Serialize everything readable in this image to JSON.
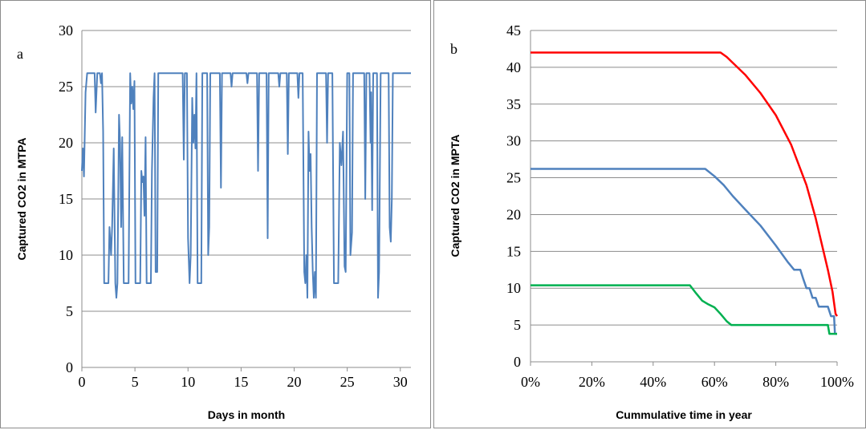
{
  "chart_data": [
    {
      "type": "line",
      "panel_letter": "a",
      "xlabel": "Days in month",
      "ylabel": "Captured CO2 in MTPA",
      "xlim": [
        0,
        31
      ],
      "ylim": [
        0,
        30
      ],
      "xticks": [
        "0",
        "5",
        "10",
        "15",
        "20",
        "25",
        "30"
      ],
      "yticks": [
        "0",
        "5",
        "10",
        "15",
        "20",
        "25",
        "30"
      ],
      "grid": "horizontal",
      "series": [
        {
          "color": "#4f81bd",
          "points": [
            [
              0.0,
              17.5
            ],
            [
              0.1,
              19.5
            ],
            [
              0.2,
              17.0
            ],
            [
              0.35,
              24.5
            ],
            [
              0.5,
              26.2
            ],
            [
              1.2,
              26.2
            ],
            [
              1.3,
              22.7
            ],
            [
              1.45,
              26.2
            ],
            [
              1.7,
              26.2
            ],
            [
              1.8,
              25.3
            ],
            [
              1.9,
              26.2
            ],
            [
              2.0,
              21.0
            ],
            [
              2.1,
              7.5
            ],
            [
              2.5,
              7.5
            ],
            [
              2.6,
              12.5
            ],
            [
              2.75,
              10.0
            ],
            [
              2.85,
              12.5
            ],
            [
              3.0,
              19.5
            ],
            [
              3.15,
              7.5
            ],
            [
              3.25,
              6.2
            ],
            [
              3.35,
              7.5
            ],
            [
              3.5,
              22.5
            ],
            [
              3.6,
              20.0
            ],
            [
              3.7,
              12.5
            ],
            [
              3.8,
              20.5
            ],
            [
              3.95,
              7.5
            ],
            [
              4.4,
              7.5
            ],
            [
              4.55,
              26.2
            ],
            [
              4.65,
              23.5
            ],
            [
              4.75,
              25.0
            ],
            [
              4.85,
              23.0
            ],
            [
              4.95,
              25.5
            ],
            [
              5.05,
              7.5
            ],
            [
              5.5,
              7.5
            ],
            [
              5.6,
              17.5
            ],
            [
              5.7,
              16.5
            ],
            [
              5.8,
              17.0
            ],
            [
              5.9,
              13.5
            ],
            [
              6.0,
              20.5
            ],
            [
              6.1,
              7.5
            ],
            [
              6.5,
              7.5
            ],
            [
              6.6,
              17.5
            ],
            [
              6.75,
              24.0
            ],
            [
              6.85,
              26.2
            ],
            [
              6.95,
              8.5
            ],
            [
              7.1,
              8.5
            ],
            [
              7.2,
              26.2
            ],
            [
              9.5,
              26.2
            ],
            [
              9.6,
              18.5
            ],
            [
              9.7,
              26.2
            ],
            [
              9.9,
              26.2
            ],
            [
              10.0,
              11.5
            ],
            [
              10.15,
              7.5
            ],
            [
              10.25,
              10.0
            ],
            [
              10.4,
              24.0
            ],
            [
              10.5,
              20.0
            ],
            [
              10.6,
              22.5
            ],
            [
              10.7,
              19.5
            ],
            [
              10.8,
              26.2
            ],
            [
              10.9,
              7.5
            ],
            [
              11.25,
              7.5
            ],
            [
              11.35,
              26.2
            ],
            [
              11.8,
              26.2
            ],
            [
              11.9,
              10.0
            ],
            [
              12.0,
              12.5
            ],
            [
              12.1,
              26.2
            ],
            [
              13.0,
              26.2
            ],
            [
              13.1,
              16.0
            ],
            [
              13.2,
              26.2
            ],
            [
              14.0,
              26.2
            ],
            [
              14.1,
              25.0
            ],
            [
              14.2,
              26.2
            ],
            [
              15.5,
              26.2
            ],
            [
              15.6,
              25.3
            ],
            [
              15.7,
              26.2
            ],
            [
              16.5,
              26.2
            ],
            [
              16.6,
              17.5
            ],
            [
              16.7,
              26.2
            ],
            [
              17.4,
              26.2
            ],
            [
              17.5,
              11.5
            ],
            [
              17.6,
              26.2
            ],
            [
              18.5,
              26.2
            ],
            [
              18.6,
              25.0
            ],
            [
              18.7,
              26.2
            ],
            [
              19.3,
              26.2
            ],
            [
              19.4,
              19.0
            ],
            [
              19.5,
              26.2
            ],
            [
              20.3,
              26.2
            ],
            [
              20.4,
              24.0
            ],
            [
              20.5,
              26.2
            ],
            [
              20.8,
              26.2
            ],
            [
              20.95,
              8.5
            ],
            [
              21.05,
              7.5
            ],
            [
              21.15,
              10.0
            ],
            [
              21.25,
              6.2
            ],
            [
              21.35,
              21.0
            ],
            [
              21.45,
              17.5
            ],
            [
              21.55,
              19.0
            ],
            [
              21.65,
              12.5
            ],
            [
              21.75,
              8.5
            ],
            [
              21.85,
              6.2
            ],
            [
              21.95,
              8.5
            ],
            [
              22.05,
              6.2
            ],
            [
              22.15,
              26.2
            ],
            [
              23.0,
              26.2
            ],
            [
              23.1,
              20.0
            ],
            [
              23.2,
              26.2
            ],
            [
              23.6,
              26.2
            ],
            [
              23.75,
              7.5
            ],
            [
              24.15,
              7.5
            ],
            [
              24.3,
              20.0
            ],
            [
              24.45,
              18.0
            ],
            [
              24.6,
              21.0
            ],
            [
              24.75,
              9.0
            ],
            [
              24.85,
              8.5
            ],
            [
              25.0,
              26.2
            ],
            [
              25.2,
              26.2
            ],
            [
              25.3,
              10.0
            ],
            [
              25.45,
              12.0
            ],
            [
              25.55,
              26.2
            ],
            [
              26.6,
              26.2
            ],
            [
              26.7,
              15.0
            ],
            [
              26.8,
              26.2
            ],
            [
              27.1,
              26.2
            ],
            [
              27.2,
              20.0
            ],
            [
              27.25,
              24.5
            ],
            [
              27.35,
              14.0
            ],
            [
              27.45,
              26.2
            ],
            [
              27.8,
              26.2
            ],
            [
              27.9,
              6.2
            ],
            [
              28.0,
              8.5
            ],
            [
              28.15,
              26.2
            ],
            [
              28.9,
              26.2
            ],
            [
              29.0,
              12.5
            ],
            [
              29.1,
              11.2
            ],
            [
              29.2,
              15.0
            ],
            [
              29.3,
              26.2
            ],
            [
              31.0,
              26.2
            ]
          ]
        }
      ]
    },
    {
      "type": "line",
      "panel_letter": "b",
      "xlabel": "Cummulative time in year",
      "ylabel": "Captured CO2 in MPTA",
      "xlim": [
        0,
        100
      ],
      "ylim": [
        0,
        45
      ],
      "xticks": [
        "0%",
        "20%",
        "40%",
        "60%",
        "80%",
        "100%"
      ],
      "yticks": [
        "0",
        "5",
        "10",
        "15",
        "20",
        "25",
        "30",
        "35",
        "40",
        "45"
      ],
      "grid": "horizontal",
      "series": [
        {
          "color": "#ff0000",
          "points": [
            [
              0,
              42.0
            ],
            [
              62,
              42.0
            ],
            [
              64,
              41.4
            ],
            [
              66,
              40.6
            ],
            [
              70,
              39.0
            ],
            [
              75,
              36.5
            ],
            [
              80,
              33.5
            ],
            [
              85,
              29.5
            ],
            [
              90,
              24.0
            ],
            [
              93,
              19.5
            ],
            [
              95,
              16.0
            ],
            [
              97,
              12.5
            ],
            [
              98.5,
              9.5
            ],
            [
              99.5,
              6.5
            ],
            [
              100,
              6.2
            ]
          ]
        },
        {
          "color": "#4f81bd",
          "points": [
            [
              0,
              26.2
            ],
            [
              57,
              26.2
            ],
            [
              60,
              25.2
            ],
            [
              63,
              24.0
            ],
            [
              66,
              22.5
            ],
            [
              70,
              20.7
            ],
            [
              75,
              18.5
            ],
            [
              80,
              15.8
            ],
            [
              84,
              13.5
            ],
            [
              86,
              12.5
            ],
            [
              88,
              12.5
            ],
            [
              89,
              11.2
            ],
            [
              90,
              10.0
            ],
            [
              91,
              10.0
            ],
            [
              92,
              8.7
            ],
            [
              93,
              8.7
            ],
            [
              94,
              7.5
            ],
            [
              97,
              7.5
            ],
            [
              98,
              6.2
            ],
            [
              99,
              6.2
            ],
            [
              99.3,
              3.8
            ],
            [
              100,
              3.8
            ]
          ]
        },
        {
          "color": "#00b050",
          "points": [
            [
              0,
              10.4
            ],
            [
              52,
              10.4
            ],
            [
              54,
              9.3
            ],
            [
              56,
              8.3
            ],
            [
              58,
              7.8
            ],
            [
              60,
              7.4
            ],
            [
              62,
              6.5
            ],
            [
              64,
              5.5
            ],
            [
              65.5,
              5.0
            ],
            [
              97,
              5.0
            ],
            [
              97.5,
              3.8
            ],
            [
              100,
              3.8
            ]
          ]
        }
      ]
    }
  ]
}
